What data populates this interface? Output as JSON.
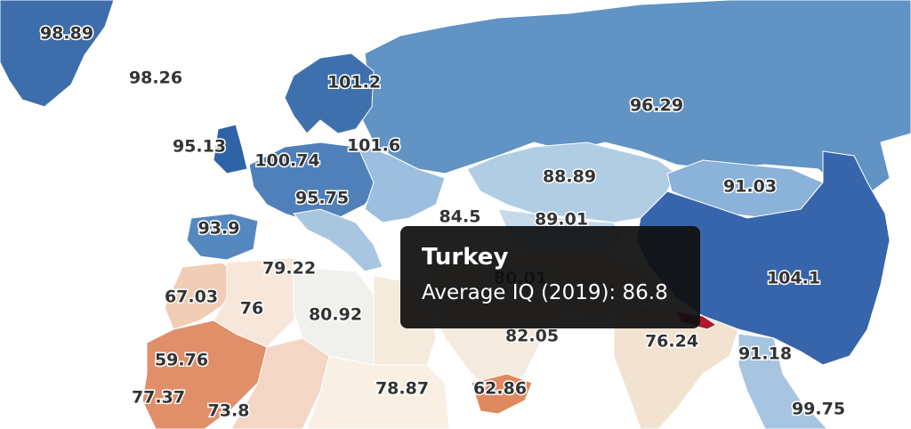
{
  "map": {
    "labels": [
      98.89,
      98.26,
      101.2,
      96.29,
      95.13,
      101.6,
      100.74,
      88.89,
      95.75,
      91.03,
      84.5,
      89.01,
      93.9,
      104.1,
      79.22,
      80.01,
      67.03,
      76,
      80.92,
      82.05,
      76.24,
      91.18,
      59.76,
      77.37,
      73.8,
      78.87,
      62.86,
      99.75
    ]
  },
  "tooltip": {
    "title": "Turkey",
    "line": "Average IQ (2019): 86.8"
  }
}
